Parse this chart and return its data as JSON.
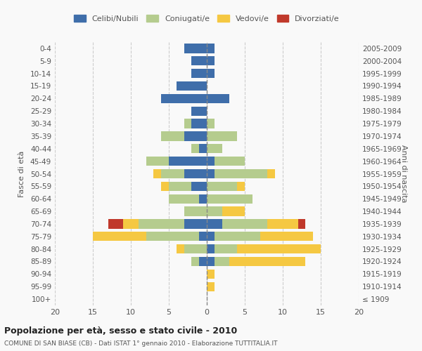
{
  "age_groups": [
    "100+",
    "95-99",
    "90-94",
    "85-89",
    "80-84",
    "75-79",
    "70-74",
    "65-69",
    "60-64",
    "55-59",
    "50-54",
    "45-49",
    "40-44",
    "35-39",
    "30-34",
    "25-29",
    "20-24",
    "15-19",
    "10-14",
    "5-9",
    "0-4"
  ],
  "birth_years": [
    "≤ 1909",
    "1910-1914",
    "1915-1919",
    "1920-1924",
    "1925-1929",
    "1930-1934",
    "1935-1939",
    "1940-1944",
    "1945-1949",
    "1950-1954",
    "1955-1959",
    "1960-1964",
    "1965-1969",
    "1970-1974",
    "1975-1979",
    "1980-1984",
    "1985-1989",
    "1990-1994",
    "1995-1999",
    "2000-2004",
    "2005-2009"
  ],
  "male": {
    "celibi": [
      0,
      0,
      0,
      1,
      0,
      1,
      3,
      0,
      1,
      2,
      3,
      5,
      1,
      3,
      2,
      2,
      6,
      4,
      2,
      2,
      3
    ],
    "coniugati": [
      0,
      0,
      0,
      1,
      3,
      7,
      6,
      3,
      4,
      3,
      3,
      3,
      1,
      3,
      1,
      0,
      0,
      0,
      0,
      0,
      0
    ],
    "vedovi": [
      0,
      0,
      0,
      0,
      1,
      7,
      2,
      0,
      0,
      1,
      1,
      0,
      0,
      0,
      0,
      0,
      0,
      0,
      0,
      0,
      0
    ],
    "divorziati": [
      0,
      0,
      0,
      0,
      0,
      0,
      2,
      0,
      0,
      0,
      0,
      0,
      0,
      0,
      0,
      0,
      0,
      0,
      0,
      0,
      0
    ]
  },
  "female": {
    "nubili": [
      0,
      0,
      0,
      1,
      1,
      1,
      2,
      0,
      0,
      0,
      1,
      1,
      0,
      0,
      0,
      0,
      3,
      0,
      1,
      1,
      1
    ],
    "coniugate": [
      0,
      0,
      0,
      2,
      3,
      6,
      6,
      2,
      6,
      4,
      7,
      4,
      2,
      4,
      1,
      0,
      0,
      0,
      0,
      0,
      0
    ],
    "vedove": [
      0,
      1,
      1,
      10,
      11,
      7,
      4,
      3,
      0,
      1,
      1,
      0,
      0,
      0,
      0,
      0,
      0,
      0,
      0,
      0,
      0
    ],
    "divorziate": [
      0,
      0,
      0,
      0,
      0,
      0,
      1,
      0,
      0,
      0,
      0,
      0,
      0,
      0,
      0,
      0,
      0,
      0,
      0,
      0,
      0
    ]
  },
  "colors": {
    "celibi_nubili": "#3f6eaa",
    "coniugati": "#b5cc8e",
    "vedovi": "#f5c842",
    "divorziati": "#c0392b"
  },
  "xlim": [
    -20,
    20
  ],
  "title": "Popolazione per età, sesso e stato civile - 2010",
  "subtitle": "COMUNE DI SAN BIASE (CB) - Dati ISTAT 1° gennaio 2010 - Elaborazione TUTTITALIA.IT",
  "ylabel_left": "Fasce di età",
  "ylabel_right": "Anni di nascita",
  "bg_color": "#f9f9f9",
  "legend_labels": [
    "Celibi/Nubili",
    "Coniugati/e",
    "Vedovi/e",
    "Divorziati/e"
  ]
}
